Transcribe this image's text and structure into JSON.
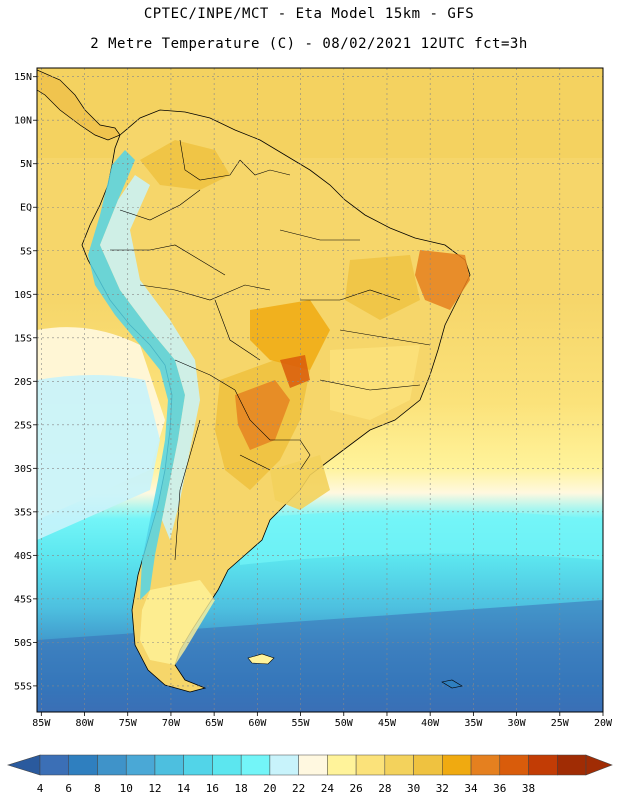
{
  "header": {
    "line1": "CPTEC/INPE/MCT -  Eta Model 15km - GFS",
    "line2": "2 Metre Temperature (C) - 08/02/2021 12UTC fct=3h"
  },
  "map": {
    "lat_labels": [
      "15N",
      "10N",
      "5N",
      "EQ",
      "5S",
      "10S",
      "15S",
      "20S",
      "25S",
      "30S",
      "35S",
      "40S",
      "45S",
      "50S",
      "55S"
    ],
    "lon_labels": [
      "85W",
      "80W",
      "75W",
      "70W",
      "65W",
      "60W",
      "55W",
      "50W",
      "45W",
      "40W",
      "35W",
      "30W",
      "25W",
      "20W"
    ],
    "lat_range": [
      16,
      -58
    ],
    "lon_range": [
      -85.5,
      -20
    ]
  },
  "colorbar": {
    "ticks": [
      "4",
      "6",
      "8",
      "10",
      "12",
      "14",
      "16",
      "18",
      "20",
      "22",
      "24",
      "26",
      "28",
      "30",
      "32",
      "34",
      "36",
      "38"
    ],
    "colors": [
      "#3b6fb6",
      "#2f7fbf",
      "#3f93c9",
      "#4aa8d6",
      "#4dbfdf",
      "#52d4e8",
      "#5ce6ef",
      "#73f5f8",
      "#c8f3fb",
      "#fff8e0",
      "#fff39a",
      "#fbe27a",
      "#f3d25c",
      "#efc240",
      "#f0aa10",
      "#e5801f",
      "#d95c0b",
      "#c23c05",
      "#a02c04"
    ],
    "low_extend_color": "#2a5a9e",
    "high_extend_color": "#a02c04"
  }
}
